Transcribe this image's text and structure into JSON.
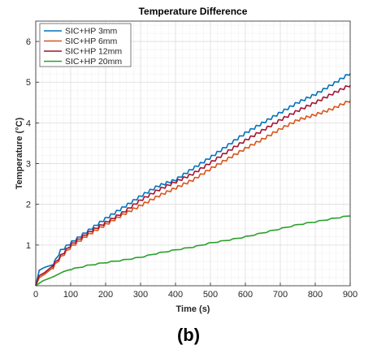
{
  "panel_label": "(b)",
  "chart_data": {
    "type": "line",
    "title": "Temperature Difference",
    "xlabel": "Time (s)",
    "ylabel": "Temperature (°C)",
    "xlim": [
      0,
      900
    ],
    "ylim": [
      0,
      6.5
    ],
    "xticks": [
      0,
      100,
      200,
      300,
      400,
      500,
      600,
      700,
      800,
      900
    ],
    "yticks": [
      1,
      2,
      3,
      4,
      5,
      6
    ],
    "grid": true,
    "minor_grid": true,
    "legend_position": "top-left",
    "series": [
      {
        "name": "SIC+HP 3mm",
        "color": "#0072BD",
        "x": [
          0,
          10,
          25,
          50,
          70,
          100,
          150,
          200,
          250,
          300,
          350,
          400,
          450,
          500,
          550,
          600,
          650,
          700,
          750,
          800,
          850,
          900
        ],
        "y": [
          0,
          0.38,
          0.45,
          0.52,
          0.85,
          1.05,
          1.35,
          1.65,
          1.92,
          2.2,
          2.45,
          2.6,
          2.88,
          3.15,
          3.45,
          3.75,
          4.0,
          4.25,
          4.5,
          4.7,
          4.95,
          5.22
        ],
        "steps": {
          "start": 50,
          "period": 16,
          "amplitude": 0.07
        }
      },
      {
        "name": "SIC+HP 6mm",
        "color": "#D95319",
        "x": [
          0,
          10,
          25,
          50,
          70,
          100,
          150,
          200,
          250,
          300,
          350,
          400,
          450,
          500,
          550,
          600,
          650,
          700,
          750,
          800,
          850,
          900
        ],
        "y": [
          0,
          0.2,
          0.28,
          0.45,
          0.68,
          0.95,
          1.25,
          1.5,
          1.75,
          1.97,
          2.2,
          2.4,
          2.6,
          2.87,
          3.12,
          3.37,
          3.6,
          3.85,
          4.07,
          4.2,
          4.35,
          4.55
        ],
        "steps": {
          "start": 50,
          "period": 16,
          "amplitude": 0.07
        }
      },
      {
        "name": "SIC+HP 12mm",
        "color": "#A2142F",
        "x": [
          0,
          10,
          25,
          50,
          70,
          100,
          150,
          200,
          250,
          300,
          350,
          400,
          450,
          500,
          550,
          600,
          650,
          700,
          750,
          800,
          850,
          900
        ],
        "y": [
          0,
          0.25,
          0.32,
          0.5,
          0.72,
          1.0,
          1.3,
          1.55,
          1.8,
          2.1,
          2.35,
          2.55,
          2.75,
          3.02,
          3.3,
          3.57,
          3.82,
          4.07,
          4.3,
          4.5,
          4.72,
          4.93
        ],
        "steps": {
          "start": 50,
          "period": 16,
          "amplitude": 0.07
        }
      },
      {
        "name": "SIC+HP 20mm",
        "color": "#2CA02C",
        "x": [
          0,
          20,
          50,
          80,
          100,
          150,
          200,
          250,
          300,
          350,
          400,
          450,
          500,
          550,
          600,
          650,
          700,
          750,
          800,
          850,
          900
        ],
        "y": [
          0,
          0.12,
          0.22,
          0.35,
          0.4,
          0.5,
          0.57,
          0.63,
          0.7,
          0.8,
          0.88,
          0.95,
          1.05,
          1.12,
          1.2,
          1.3,
          1.4,
          1.5,
          1.57,
          1.65,
          1.72
        ],
        "steps": {
          "start": 100,
          "period": 35,
          "amplitude": 0.025
        }
      }
    ]
  }
}
